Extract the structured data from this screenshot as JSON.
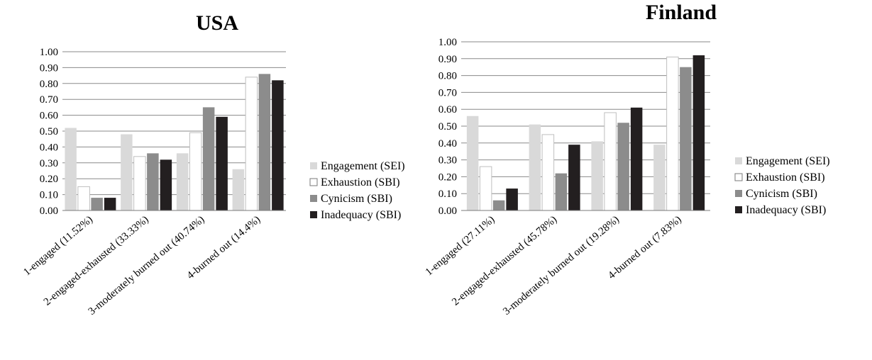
{
  "chart_data": [
    {
      "type": "bar",
      "title": "USA",
      "categories": [
        "1-engaged (11.52%)",
        "2-engaged-exhausted (33.33%)",
        "3-moderately burned out (40.74%)",
        "4-burned out (14.4%)"
      ],
      "series": [
        {
          "name": "Engagement (SEI)",
          "color": "#d9d9d9",
          "values": [
            0.52,
            0.48,
            0.36,
            0.26
          ]
        },
        {
          "name": "Exhaustion (SBI)",
          "color": "#ffffff",
          "values": [
            0.15,
            0.34,
            0.49,
            0.84
          ]
        },
        {
          "name": "Cynicism (SBI)",
          "color": "#8c8c8c",
          "values": [
            0.08,
            0.36,
            0.65,
            0.86
          ]
        },
        {
          "name": "Inadequacy (SBI)",
          "color": "#231f20",
          "values": [
            0.08,
            0.32,
            0.59,
            0.82
          ]
        }
      ],
      "ylim": [
        0,
        1
      ],
      "yticks": [
        "0.00",
        "0.10",
        "0.20",
        "0.30",
        "0.40",
        "0.50",
        "0.60",
        "0.70",
        "0.80",
        "0.90",
        "1.00"
      ],
      "grid": true,
      "legend": "right"
    },
    {
      "type": "bar",
      "title": "Finland",
      "categories": [
        "1-engaged (27.11%)",
        "2-engaged-exhausted (45.78%)",
        "3-moderately burned out (19.28%)",
        "4-burned out (7.83%)"
      ],
      "series": [
        {
          "name": "Engagement (SEI)",
          "color": "#d9d9d9",
          "values": [
            0.56,
            0.51,
            0.41,
            0.39
          ]
        },
        {
          "name": "Exhaustion (SBI)",
          "color": "#ffffff",
          "values": [
            0.26,
            0.45,
            0.58,
            0.91
          ]
        },
        {
          "name": "Cynicism (SBI)",
          "color": "#8c8c8c",
          "values": [
            0.06,
            0.22,
            0.52,
            0.85
          ]
        },
        {
          "name": "Inadequacy (SBI)",
          "color": "#231f20",
          "values": [
            0.13,
            0.39,
            0.61,
            0.92
          ]
        }
      ],
      "ylim": [
        0,
        1
      ],
      "yticks": [
        "0.00",
        "0.10",
        "0.20",
        "0.30",
        "0.40",
        "0.50",
        "0.60",
        "0.70",
        "0.80",
        "0.90",
        "1.00"
      ],
      "grid": true,
      "legend": "right"
    }
  ]
}
